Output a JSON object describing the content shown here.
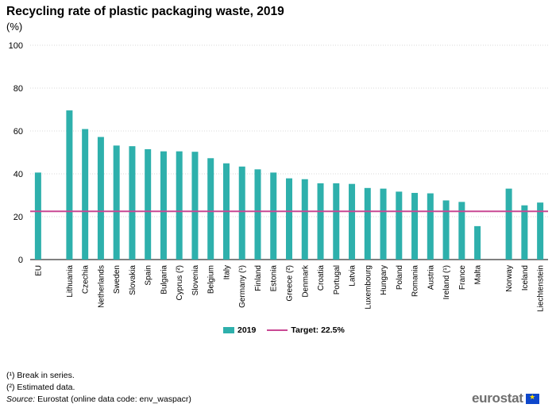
{
  "header": {
    "title": "Recycling rate of plastic packaging waste, 2019",
    "unit": "(%)"
  },
  "legend": {
    "series_label": "2019",
    "target_label": "Target: 22.5%"
  },
  "footnotes": {
    "note1": "(¹) Break in series.",
    "note2": "(²) Estimated data.",
    "source_label": "Source:",
    "source_text": "Eurostat (online data code: env_waspacr)"
  },
  "logo": {
    "text": "eurostat",
    "flag": "eu-flag-icon"
  },
  "colors": {
    "bar": "#2eb0ac",
    "target": "#c94894",
    "grid": "#d9d9d9"
  },
  "chart_data": {
    "type": "bar",
    "title": "Recycling rate of plastic packaging waste, 2019",
    "ylabel": "(%)",
    "ylim": [
      0,
      100
    ],
    "yticks": [
      0,
      20,
      40,
      60,
      80,
      100
    ],
    "grid": true,
    "legend_position": "bottom",
    "categories": [
      "EU",
      "",
      "Lithuania",
      "Czechia",
      "Netherlands",
      "Sweden",
      "Slovakia",
      "Spain",
      "Bulgaria",
      "Cyprus (²)",
      "Slovenia",
      "Belgium",
      "Italy",
      "Germany (¹)",
      "Finland",
      "Estonia",
      "Greece (²)",
      "Denmark",
      "Croatia",
      "Portugal",
      "Latvia",
      "Luxembourg",
      "Hungary",
      "Poland",
      "Romania",
      "Austria",
      "Ireland (¹)",
      "France",
      "Malta",
      "",
      "Norway",
      "Iceland",
      "Liechtenstein"
    ],
    "series": [
      {
        "name": "2019",
        "values": [
          40.6,
          null,
          69.6,
          60.9,
          57.2,
          53.2,
          52.9,
          51.5,
          50.5,
          50.5,
          50.3,
          47.3,
          44.9,
          43.4,
          42.1,
          40.6,
          37.9,
          37.5,
          35.6,
          35.6,
          35.3,
          33.4,
          33.1,
          31.7,
          31.1,
          30.9,
          27.6,
          26.9,
          15.6,
          null,
          33.1,
          25.3,
          26.6
        ]
      }
    ],
    "target": {
      "name": "Target: 22.5%",
      "value": 22.5
    }
  }
}
